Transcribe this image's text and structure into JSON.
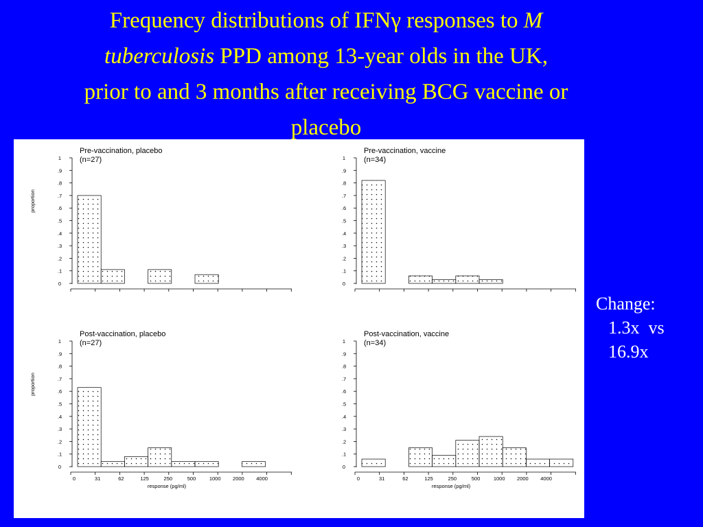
{
  "title": {
    "line1_a": "Frequency distributions of IFNγ responses to ",
    "line1_b": "M",
    "line2_a": "tuberculosis",
    "line2_b": " PPD among 13-year olds in the UK,",
    "line3": "prior to and 3 months after receiving BCG vaccine or",
    "line4": "placebo"
  },
  "change_note": {
    "label": "Change:",
    "line1": "1.3x  vs",
    "line2": "16.9x"
  },
  "colors": {
    "background": "#0000ff",
    "title": "#ffff00",
    "note": "#ffffff",
    "panel": "#ffffff"
  },
  "chart_data": [
    {
      "type": "bar",
      "title": "Pre-vaccination, placebo",
      "subtitle": "(n=27)",
      "ylabel": "proportion",
      "xlabel": "",
      "ylim": [
        0,
        1
      ],
      "yticks": [
        "0",
        ".1",
        ".2",
        ".3",
        ".4",
        ".5",
        ".6",
        ".7",
        ".8",
        ".9",
        "1"
      ],
      "xticks": [],
      "bins": 10,
      "values": [
        0.7,
        0.11,
        0,
        0.11,
        0,
        0.07,
        0,
        0,
        0,
        0
      ]
    },
    {
      "type": "bar",
      "title": "Pre-vaccination, vaccine",
      "subtitle": "(n=34)",
      "ylabel": "",
      "xlabel": "",
      "ylim": [
        0,
        1
      ],
      "yticks": [
        "0",
        ".1",
        ".2",
        ".3",
        ".4",
        ".5",
        ".6",
        ".7",
        ".8",
        ".9",
        "1"
      ],
      "xticks": [],
      "bins": 10,
      "values": [
        0.82,
        0,
        0.06,
        0.03,
        0.06,
        0.03,
        0,
        0,
        0,
        0
      ]
    },
    {
      "type": "bar",
      "title": "Post-vaccination, placebo",
      "subtitle": "(n=27)",
      "ylabel": "proportion",
      "xlabel": "response (pg/ml)",
      "ylim": [
        0,
        1
      ],
      "yticks": [
        "0",
        ".1",
        ".2",
        ".3",
        ".4",
        ".5",
        ".6",
        ".7",
        ".8",
        ".9",
        "1"
      ],
      "xticks": [
        "0",
        "31",
        "62",
        "125",
        "250",
        "500",
        "1000",
        "2000",
        "4000"
      ],
      "bins": 10,
      "values": [
        0.63,
        0.04,
        0.08,
        0.15,
        0.04,
        0.04,
        0,
        0.04,
        0,
        0
      ]
    },
    {
      "type": "bar",
      "title": "Post-vaccination, vaccine",
      "subtitle": "(n=34)",
      "ylabel": "",
      "xlabel": "response (pg/ml)",
      "ylim": [
        0,
        1
      ],
      "yticks": [
        "0",
        ".1",
        ".2",
        ".3",
        ".4",
        ".5",
        ".6",
        ".7",
        ".8",
        ".9",
        "1"
      ],
      "xticks": [
        "0",
        "31",
        "62",
        "125",
        "250",
        "500",
        "1000",
        "2000",
        "4000"
      ],
      "bins": 10,
      "values": [
        0.06,
        0,
        0.15,
        0.09,
        0.21,
        0.24,
        0.15,
        0.06,
        0.06,
        0
      ]
    }
  ]
}
